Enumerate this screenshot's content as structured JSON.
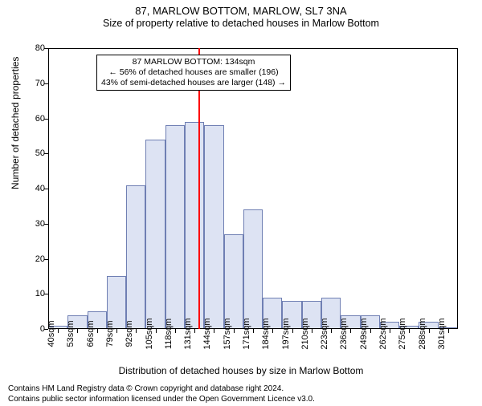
{
  "title": "87, MARLOW BOTTOM, MARLOW, SL7 3NA",
  "subtitle": "Size of property relative to detached houses in Marlow Bottom",
  "ylabel": "Number of detached properties",
  "xlabel": "Distribution of detached houses by size in Marlow Bottom",
  "chart": {
    "type": "histogram",
    "bar_fill": "#dde3f3",
    "bar_stroke": "#6f7fb3",
    "background_color": "#ffffff",
    "border_color": "#000000",
    "ylim": [
      0,
      80
    ],
    "ytick_step": 10,
    "yticks": [
      0,
      10,
      20,
      30,
      40,
      50,
      60,
      70,
      80
    ],
    "x_categories": [
      "40sqm",
      "53sqm",
      "66sqm",
      "79sqm",
      "92sqm",
      "105sqm",
      "118sqm",
      "131sqm",
      "144sqm",
      "157sqm",
      "171sqm",
      "184sqm",
      "197sqm",
      "210sqm",
      "223sqm",
      "236sqm",
      "249sqm",
      "262sqm",
      "275sqm",
      "288sqm",
      "301sqm"
    ],
    "values": [
      1,
      4,
      5,
      15,
      41,
      54,
      58,
      59,
      58,
      27,
      34,
      9,
      8,
      8,
      9,
      4,
      4,
      2,
      1,
      2,
      0
    ],
    "bar_width_ratio": 1.0,
    "vline": {
      "x_sqm": 134,
      "color": "#ff0000",
      "width": 2
    },
    "annotation": {
      "lines": [
        "87 MARLOW BOTTOM: 134sqm",
        "← 56% of detached houses are smaller (196)",
        "43% of semi-detached houses are larger (148) →"
      ],
      "border_color": "#000000",
      "background": "#ffffff",
      "fontsize": 10.5
    },
    "label_fontsize": 12,
    "tick_fontsize": 11
  },
  "footer": {
    "line1": "Contains HM Land Registry data © Crown copyright and database right 2024.",
    "line2": "Contains public sector information licensed under the Open Government Licence v3.0."
  }
}
